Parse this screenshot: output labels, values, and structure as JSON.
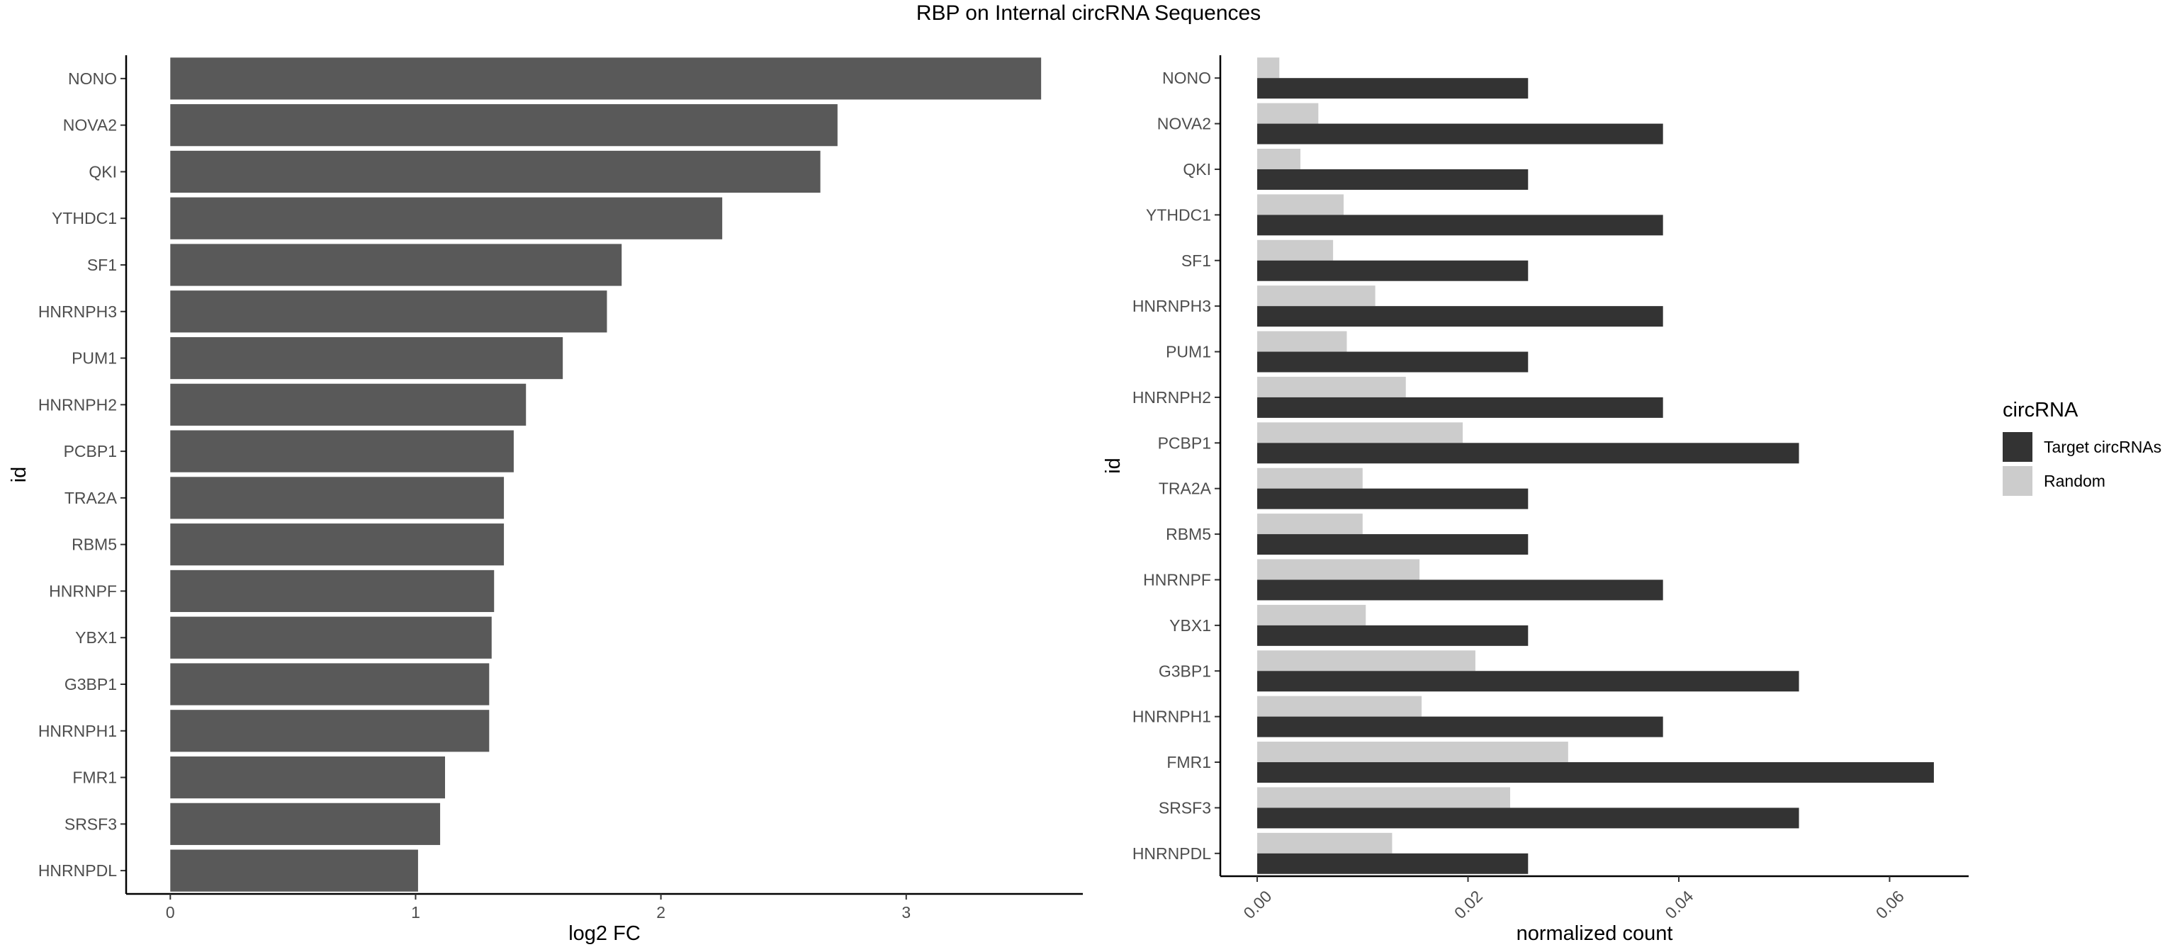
{
  "title": "RBP on Internal circRNA Sequences",
  "chart_data": [
    {
      "type": "bar",
      "orientation": "horizontal",
      "xlabel": "log2 FC",
      "ylabel": "id",
      "xlim": [
        -0.18,
        3.72
      ],
      "xticks": [
        0,
        1,
        2,
        3
      ],
      "xtick_labels": [
        "0",
        "1",
        "2",
        "3"
      ],
      "grid": false,
      "bar_color": "#595959",
      "categories": [
        "NONO",
        "NOVA2",
        "QKI",
        "YTHDC1",
        "SF1",
        "HNRNPH3",
        "PUM1",
        "HNRNPH2",
        "PCBP1",
        "TRA2A",
        "RBM5",
        "HNRNPF",
        "YBX1",
        "G3BP1",
        "HNRNPH1",
        "FMR1",
        "SRSF3",
        "HNRNPDL"
      ],
      "values": [
        3.55,
        2.72,
        2.65,
        2.25,
        1.84,
        1.78,
        1.6,
        1.45,
        1.4,
        1.36,
        1.36,
        1.32,
        1.31,
        1.3,
        1.3,
        1.12,
        1.1,
        1.01
      ]
    },
    {
      "type": "bar",
      "orientation": "horizontal",
      "grouped": true,
      "xlabel": "normalized count",
      "ylabel": "id",
      "xlim": [
        -0.0035,
        0.0675
      ],
      "xticks": [
        0,
        0.02,
        0.04,
        0.06
      ],
      "xtick_labels": [
        "0.00",
        "0.02",
        "0.04",
        "0.06"
      ],
      "grid": false,
      "categories": [
        "NONO",
        "NOVA2",
        "QKI",
        "YTHDC1",
        "SF1",
        "HNRNPH3",
        "PUM1",
        "HNRNPH2",
        "PCBP1",
        "TRA2A",
        "RBM5",
        "HNRNPF",
        "YBX1",
        "G3BP1",
        "HNRNPH1",
        "FMR1",
        "SRSF3",
        "HNRNPDL"
      ],
      "legend": {
        "title": "circRNA",
        "position": "right"
      },
      "series": [
        {
          "name": "Target circRNAs",
          "color": "#333333",
          "values": [
            0.0257,
            0.0385,
            0.0257,
            0.0385,
            0.0257,
            0.0385,
            0.0257,
            0.0385,
            0.0514,
            0.0257,
            0.0257,
            0.0385,
            0.0257,
            0.0514,
            0.0385,
            0.0642,
            0.0514,
            0.0257
          ]
        },
        {
          "name": "Random",
          "color": "#cccccc",
          "values": [
            0.0021,
            0.0058,
            0.0041,
            0.0082,
            0.0072,
            0.0112,
            0.0085,
            0.0141,
            0.0195,
            0.01,
            0.01,
            0.0154,
            0.0103,
            0.0207,
            0.0156,
            0.0295,
            0.024,
            0.0128
          ]
        }
      ]
    }
  ]
}
